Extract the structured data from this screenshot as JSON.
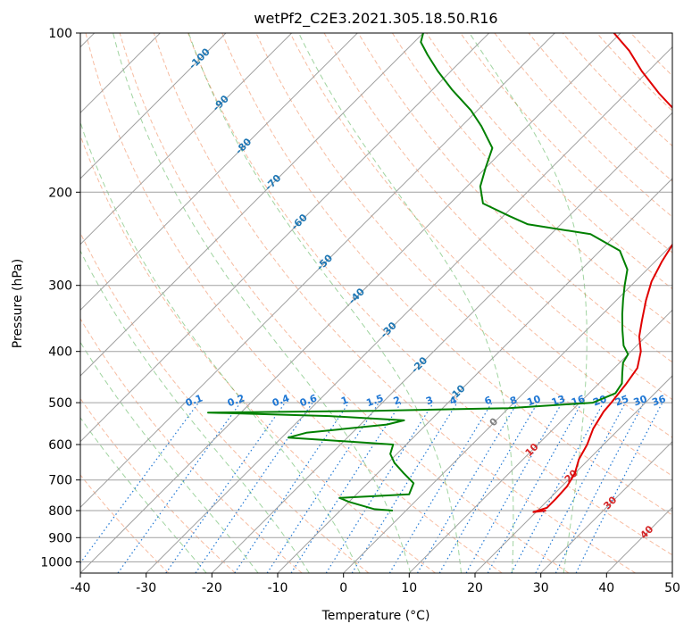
{
  "chart_data": {
    "type": "line",
    "title": "wetPf2_C2E3.2021.305.18.50.R16",
    "xlabel": "Temperature (°C)",
    "ylabel": "Pressure (hPa)",
    "xlim": [
      -40,
      50
    ],
    "ylim": [
      1050,
      100
    ],
    "x_ticks": [
      -40,
      -30,
      -20,
      -10,
      0,
      10,
      20,
      30,
      40,
      50
    ],
    "y_ticks": [
      100,
      200,
      300,
      400,
      500,
      600,
      700,
      800,
      900,
      1000
    ],
    "skew_deg": 45,
    "colors": {
      "temperature": "#e00000",
      "dewpoint": "#008000",
      "isotherm": "#a0a0a0",
      "isobar": "#a0a0a0",
      "dry_adiabat": "#f4a582",
      "moist_adiabat": "#2ca02c",
      "mixing_ratio": "#1f77d4",
      "iso_label_blue": "#1f77b4",
      "iso_label_red": "#d62728",
      "iso_label_gray": "#808080"
    },
    "series": [
      {
        "name": "temperature",
        "points": [
          [
            21.3,
            800
          ],
          [
            19.6,
            805
          ],
          [
            21.0,
            790
          ],
          [
            21.0,
            760
          ],
          [
            20.8,
            720
          ],
          [
            20.0,
            680
          ],
          [
            18.5,
            640
          ],
          [
            17.5,
            600
          ],
          [
            16.0,
            560
          ],
          [
            15.0,
            520
          ],
          [
            14.8,
            500
          ],
          [
            14.2,
            460
          ],
          [
            13.5,
            430
          ],
          [
            11.5,
            400
          ],
          [
            9.0,
            375
          ],
          [
            7.0,
            350
          ],
          [
            4.5,
            320
          ],
          [
            2.5,
            295
          ],
          [
            1.0,
            270
          ],
          [
            0.0,
            250
          ],
          [
            -1.5,
            230
          ],
          [
            -3.0,
            212
          ],
          [
            -5.0,
            195
          ],
          [
            -8.0,
            175
          ],
          [
            -11.5,
            160
          ],
          [
            -16.5,
            150
          ],
          [
            -20.0,
            140
          ],
          [
            -25.0,
            130
          ],
          [
            -31.0,
            118
          ],
          [
            -36.0,
            108
          ],
          [
            -41.0,
            100
          ]
        ]
      },
      {
        "name": "dewpoint",
        "points": [
          [
            -2.0,
            800
          ],
          [
            -5.0,
            795
          ],
          [
            -10.0,
            770
          ],
          [
            -12.0,
            757
          ],
          [
            -2.0,
            745
          ],
          [
            -3.0,
            710
          ],
          [
            -6.0,
            680
          ],
          [
            -9.0,
            650
          ],
          [
            -11.0,
            625
          ],
          [
            -12.0,
            600
          ],
          [
            -29.0,
            582
          ],
          [
            -27.0,
            570
          ],
          [
            -16.0,
            550
          ],
          [
            -14.0,
            540
          ],
          [
            -26.0,
            530
          ],
          [
            -45.0,
            522
          ],
          [
            -20.0,
            518
          ],
          [
            0.0,
            512
          ],
          [
            12.0,
            500
          ],
          [
            14.0,
            480
          ],
          [
            13.5,
            460
          ],
          [
            12.0,
            440
          ],
          [
            10.5,
            420
          ],
          [
            10.0,
            405
          ],
          [
            8.0,
            390
          ],
          [
            5.5,
            365
          ],
          [
            3.0,
            340
          ],
          [
            1.0,
            320
          ],
          [
            -1.0,
            300
          ],
          [
            -3.0,
            280
          ],
          [
            -7.0,
            258
          ],
          [
            -14.0,
            240
          ],
          [
            -25.0,
            230
          ],
          [
            -29.0,
            222
          ],
          [
            -35.0,
            210
          ],
          [
            -38.0,
            195
          ],
          [
            -40.0,
            180
          ],
          [
            -42.0,
            165
          ],
          [
            -47.0,
            150
          ],
          [
            -51.0,
            140
          ],
          [
            -57.0,
            128
          ],
          [
            -62.0,
            118
          ],
          [
            -66.0,
            110
          ],
          [
            -69.0,
            104
          ],
          [
            -70.0,
            100
          ]
        ]
      }
    ],
    "isotherm_temps": [
      -150,
      -140,
      -130,
      -120,
      -110,
      -100,
      -90,
      -80,
      -70,
      -60,
      -50,
      -40,
      -30,
      -20,
      -10,
      0,
      10,
      20,
      30,
      40,
      50
    ],
    "dry_adiabat_thetas": [
      -30,
      -20,
      -10,
      0,
      10,
      20,
      30,
      40,
      50,
      60,
      70,
      80,
      90,
      100,
      110,
      120,
      130,
      140,
      150,
      160,
      170,
      180,
      200,
      220
    ],
    "moist_adiabat_start_temps": [
      -24,
      -16,
      -8,
      0,
      8,
      16,
      24,
      32
    ],
    "mixing_ratios": [
      0.1,
      0.2,
      0.4,
      0.6,
      1,
      1.5,
      2,
      3,
      4,
      6,
      8,
      10,
      13,
      16,
      20,
      25,
      30,
      36
    ],
    "isotherm_labels": [
      {
        "text": "-100",
        "p": 112
      },
      {
        "text": "-90",
        "p": 136
      },
      {
        "text": "-80",
        "p": 164
      },
      {
        "text": "-70",
        "p": 192
      },
      {
        "text": "-60",
        "p": 228
      },
      {
        "text": "-50",
        "p": 272
      },
      {
        "text": "-40",
        "p": 315
      },
      {
        "text": "-30",
        "p": 365
      },
      {
        "text": "-20",
        "p": 425
      },
      {
        "text": "-10",
        "p": 480
      }
    ],
    "mixing_ratio_labels": [
      "0.1",
      "0.2",
      "0.4",
      "0.6",
      "1",
      "1.5",
      "2",
      "3",
      "4",
      "6",
      "8",
      "10",
      "13",
      "16",
      "20",
      "25",
      "30",
      "36"
    ],
    "temperature_labels": [
      {
        "text": "0",
        "p": 545
      },
      {
        "text": "10",
        "p": 615
      },
      {
        "text": "20",
        "p": 690
      },
      {
        "text": "30",
        "p": 775
      },
      {
        "text": "40",
        "p": 880
      }
    ]
  }
}
